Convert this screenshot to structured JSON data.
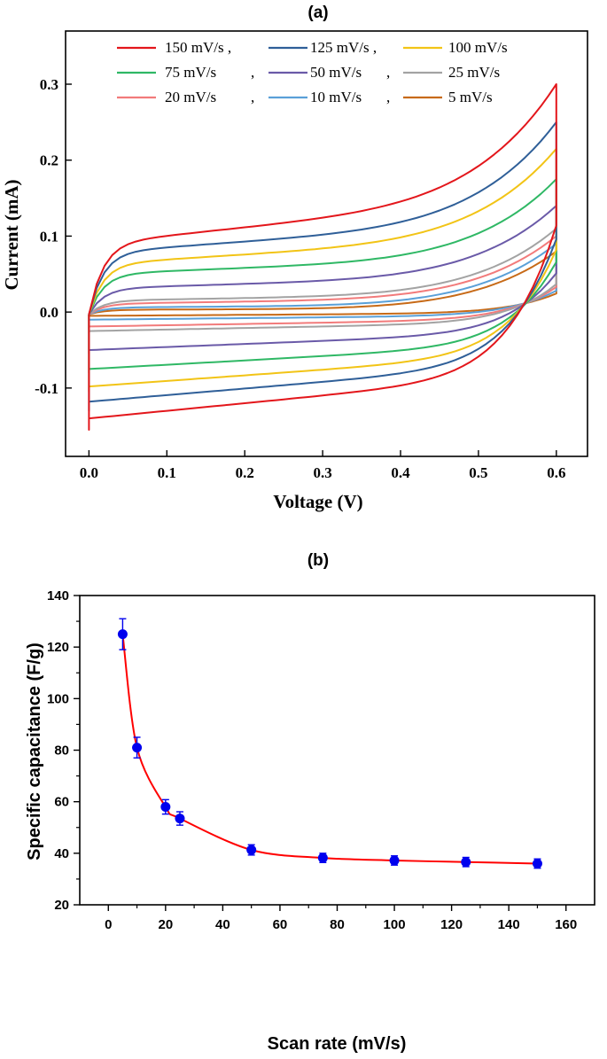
{
  "chart_data": [
    {
      "panel": "(a)",
      "type": "line",
      "title": "(a)",
      "xlabel": "Voltage (V)",
      "ylabel": "Current (mA)",
      "xlim": [
        -0.03,
        0.64
      ],
      "ylim": [
        -0.19,
        0.37
      ],
      "xticks": [
        0.0,
        0.1,
        0.2,
        0.3,
        0.4,
        0.5,
        0.6
      ],
      "xtick_labels": [
        "0.0",
        "0.1",
        "0.2",
        "0.3",
        "0.4",
        "0.5",
        "0.6"
      ],
      "yticks": [
        -0.1,
        0.0,
        0.1,
        0.2,
        0.3
      ],
      "ytick_labels": [
        "-0.1",
        "0.0",
        "0.1",
        "0.2",
        "0.3"
      ],
      "legend_position": "top",
      "series": [
        {
          "name": "150 mV/s",
          "legend_label": "150 mV/s ,",
          "color": "#e3161b",
          "peak_ox": 0.3,
          "peak_red": -0.155,
          "plat_start": 0.09,
          "plat_mid": 0.122,
          "plat_bot_start": -0.14,
          "plat_bot_mid": -0.11
        },
        {
          "name": "125 mV/s",
          "legend_label": "125 mV/s ,",
          "color": "#2f5f98",
          "peak_ox": 0.25,
          "peak_red": -0.13,
          "plat_start": 0.078,
          "plat_mid": 0.1,
          "plat_bot_start": -0.118,
          "plat_bot_mid": -0.092
        },
        {
          "name": "100 mV/s",
          "legend_label": "100 mV/s",
          "color": "#f2c416",
          "peak_ox": 0.215,
          "peak_red": -0.105,
          "plat_start": 0.063,
          "plat_mid": 0.082,
          "plat_bot_start": -0.098,
          "plat_bot_mid": -0.076
        },
        {
          "name": "75 mV/s",
          "legend_label": "75 mV/s",
          "color": "#2fb865",
          "peak_ox": 0.175,
          "peak_red": -0.08,
          "plat_start": 0.05,
          "plat_mid": 0.062,
          "plat_bot_start": -0.075,
          "plat_bot_mid": -0.058
        },
        {
          "name": "50 mV/s",
          "legend_label": "50 mV/s",
          "color": "#6a5aa8",
          "peak_ox": 0.14,
          "peak_red": -0.055,
          "plat_start": 0.031,
          "plat_mid": 0.04,
          "plat_bot_start": -0.05,
          "plat_bot_mid": -0.038
        },
        {
          "name": "25 mV/s",
          "legend_label": "25 mV/s",
          "color": "#a3a3a3",
          "peak_ox": 0.11,
          "peak_red": -0.028,
          "plat_start": 0.015,
          "plat_mid": 0.02,
          "plat_bot_start": -0.025,
          "plat_bot_mid": -0.019
        },
        {
          "name": "20 mV/s",
          "legend_label": "20 mV/s",
          "color": "#f27b7b",
          "peak_ox": 0.1,
          "peak_red": -0.022,
          "plat_start": 0.011,
          "plat_mid": 0.015,
          "plat_bot_start": -0.019,
          "plat_bot_mid": -0.014
        },
        {
          "name": "10 mV/s",
          "legend_label": "10 mV/s",
          "color": "#5aa0d8",
          "peak_ox": 0.09,
          "peak_red": -0.012,
          "plat_start": 0.006,
          "plat_mid": 0.008,
          "plat_bot_start": -0.01,
          "plat_bot_mid": -0.007
        },
        {
          "name": "5 mV/s",
          "legend_label": "5 mV/s",
          "color": "#c76a17",
          "peak_ox": 0.08,
          "peak_red": -0.006,
          "plat_start": 0.003,
          "plat_mid": 0.004,
          "plat_bot_start": -0.005,
          "plat_bot_mid": -0.003
        }
      ]
    },
    {
      "panel": "(b)",
      "type": "scatter",
      "title": "(b)",
      "xlabel": "Scan rate (mV/s)",
      "ylabel": "Specific capacitance (F/g)",
      "xlim": [
        -10,
        170
      ],
      "ylim": [
        20,
        140
      ],
      "xticks": [
        0,
        20,
        40,
        60,
        80,
        100,
        120,
        140,
        160
      ],
      "xtick_labels": [
        "0",
        "20",
        "40",
        "60",
        "80",
        "100",
        "120",
        "140",
        "160"
      ],
      "yticks": [
        20,
        40,
        60,
        80,
        100,
        120,
        140
      ],
      "ytick_labels": [
        "20",
        "40",
        "60",
        "80",
        "100",
        "120",
        "140"
      ],
      "line_color": "#ff0000",
      "marker_color": "#0000ee",
      "x": [
        5,
        10,
        20,
        25,
        50,
        75,
        100,
        125,
        150
      ],
      "y": [
        125,
        81,
        58,
        53.5,
        41.3,
        38.2,
        37.2,
        36.6,
        36.0
      ],
      "error": [
        6.0,
        4.0,
        2.8,
        2.6,
        2.0,
        1.8,
        1.8,
        1.8,
        1.8
      ]
    }
  ]
}
